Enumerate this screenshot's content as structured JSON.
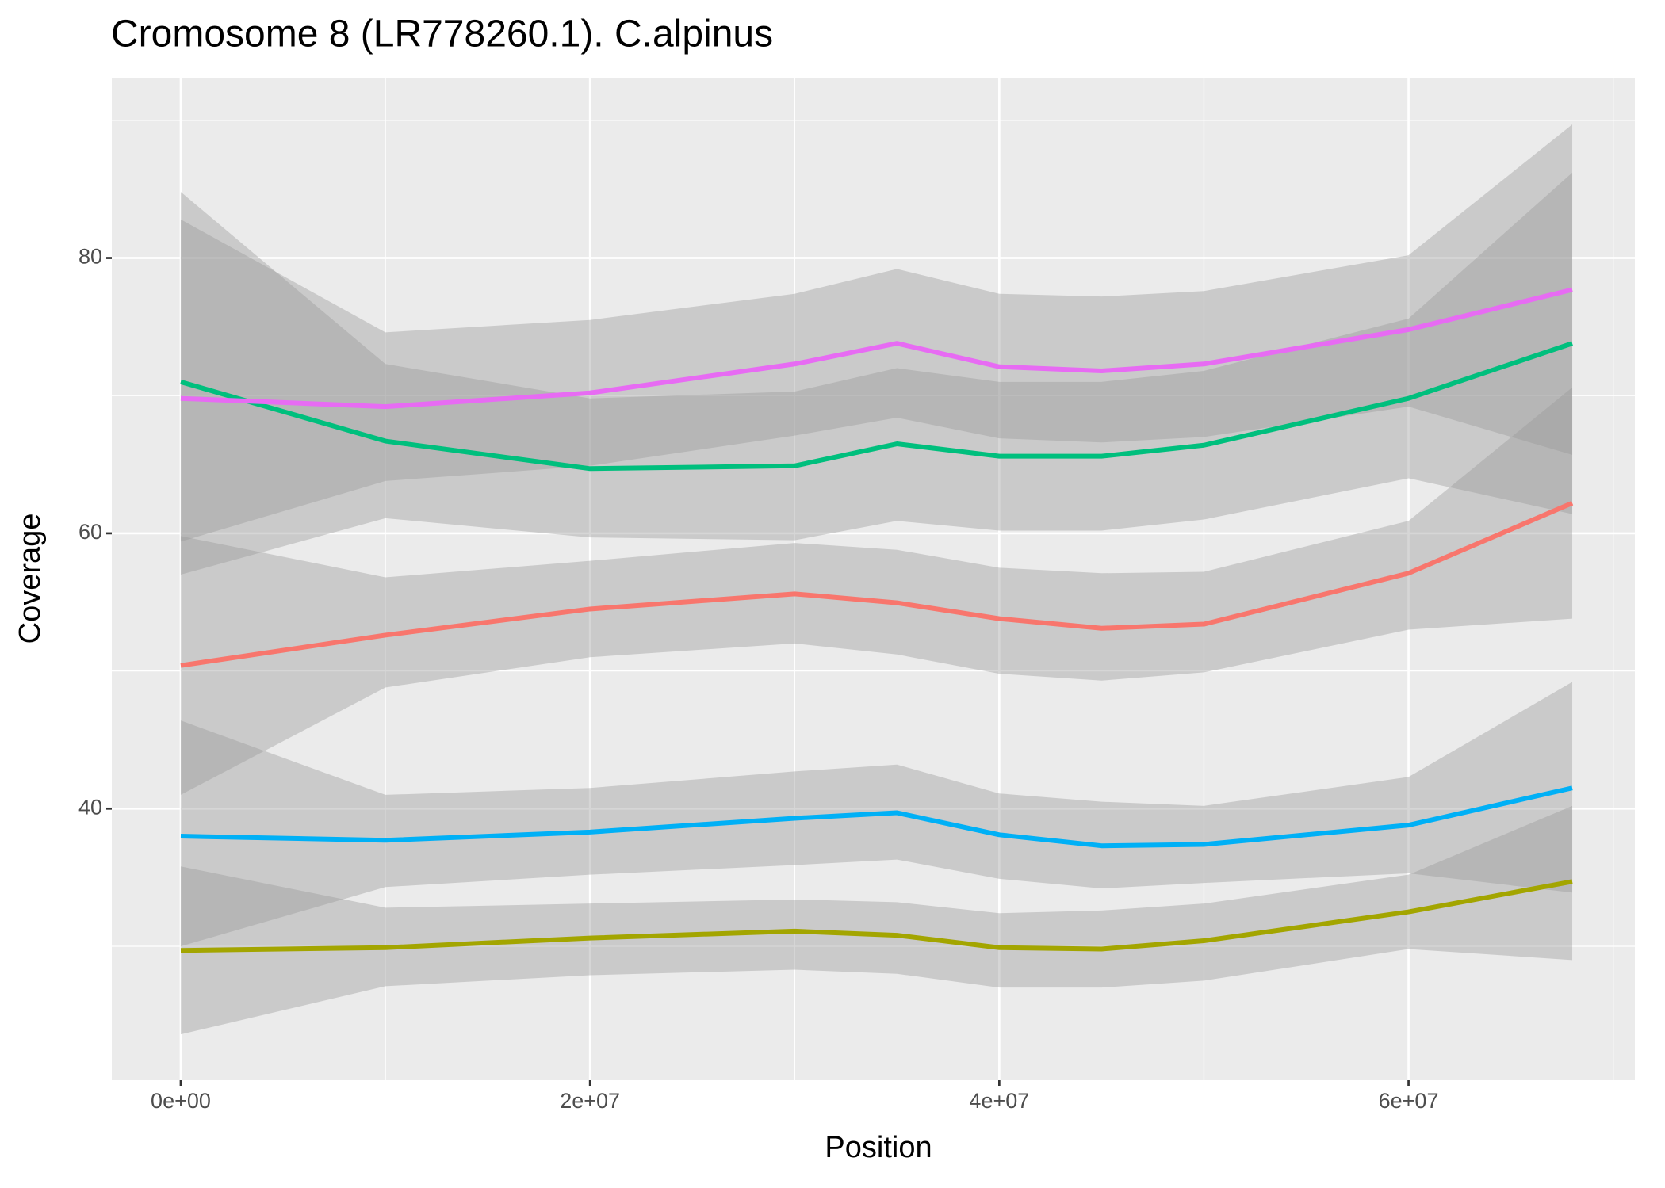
{
  "chart_data": {
    "type": "line",
    "title": "Cromosome 8 (LR778260.1). C.alpinus",
    "x_label": "Position",
    "y_label": "Coverage",
    "x": [
      0,
      10000000,
      20000000,
      30000000,
      35000000,
      40000000,
      45000000,
      50000000,
      60000000,
      68000000
    ],
    "xlim": [
      -3370000,
      71060000
    ],
    "ylim": [
      20.27,
      93.1
    ],
    "xticks": [
      {
        "value": 0,
        "label": "0e+00"
      },
      {
        "value": 20000000,
        "label": "2e+07"
      },
      {
        "value": 40000000,
        "label": "4e+07"
      },
      {
        "value": 60000000,
        "label": "6e+07"
      }
    ],
    "x_minor_ticks": [
      10000000,
      30000000,
      50000000,
      70000000
    ],
    "yticks": [
      40,
      60,
      80
    ],
    "y_minor_ticks": [
      30,
      50,
      70,
      90
    ],
    "grid": true,
    "band_color": "#999999",
    "series": [
      {
        "color": "#f8766d",
        "values": [
          50.4,
          52.6,
          54.5,
          55.6,
          54.95,
          53.8,
          53.1,
          53.4,
          57.1,
          62.2
        ],
        "lower": [
          41.0,
          48.8,
          51.0,
          52.0,
          51.2,
          49.8,
          49.3,
          49.9,
          53.0,
          53.8
        ],
        "upper": [
          59.8,
          56.8,
          58.0,
          59.3,
          58.8,
          57.5,
          57.1,
          57.2,
          60.9,
          70.6
        ]
      },
      {
        "color": "#a3a500",
        "values": [
          29.7,
          29.9,
          30.6,
          31.1,
          30.8,
          29.9,
          29.8,
          30.4,
          32.5,
          34.7
        ],
        "lower": [
          23.6,
          27.1,
          27.9,
          28.3,
          28.0,
          27.0,
          27.0,
          27.5,
          29.8,
          29.0
        ],
        "upper": [
          35.8,
          32.8,
          33.1,
          33.4,
          33.2,
          32.4,
          32.6,
          33.1,
          35.2,
          40.2
        ]
      },
      {
        "color": "#00bf7d",
        "values": [
          71.0,
          66.7,
          64.7,
          64.9,
          66.5,
          65.6,
          65.6,
          66.4,
          69.8,
          73.8
        ],
        "lower": [
          57.0,
          61.1,
          59.7,
          59.5,
          60.9,
          60.2,
          60.2,
          61.0,
          64.0,
          61.4
        ],
        "upper": [
          84.8,
          72.3,
          69.8,
          70.3,
          72.0,
          71.0,
          71.0,
          71.8,
          75.6,
          86.2
        ]
      },
      {
        "color": "#00b0f6",
        "values": [
          38.0,
          37.7,
          38.3,
          39.3,
          39.7,
          38.1,
          37.3,
          37.4,
          38.8,
          41.5
        ],
        "lower": [
          30.0,
          34.3,
          35.2,
          35.9,
          36.3,
          34.9,
          34.2,
          34.6,
          35.3,
          33.9
        ],
        "upper": [
          46.4,
          41.0,
          41.5,
          42.7,
          43.2,
          41.1,
          40.5,
          40.2,
          42.3,
          49.2
        ]
      },
      {
        "color": "#e76bf3",
        "values": [
          69.8,
          69.2,
          70.2,
          72.3,
          73.8,
          72.1,
          71.8,
          72.3,
          74.8,
          77.7
        ],
        "lower": [
          59.4,
          63.8,
          64.9,
          67.1,
          68.4,
          66.9,
          66.6,
          67.0,
          69.2,
          65.7
        ],
        "upper": [
          82.8,
          74.6,
          75.5,
          77.4,
          79.2,
          77.4,
          77.2,
          77.6,
          80.2,
          89.7
        ]
      }
    ]
  }
}
